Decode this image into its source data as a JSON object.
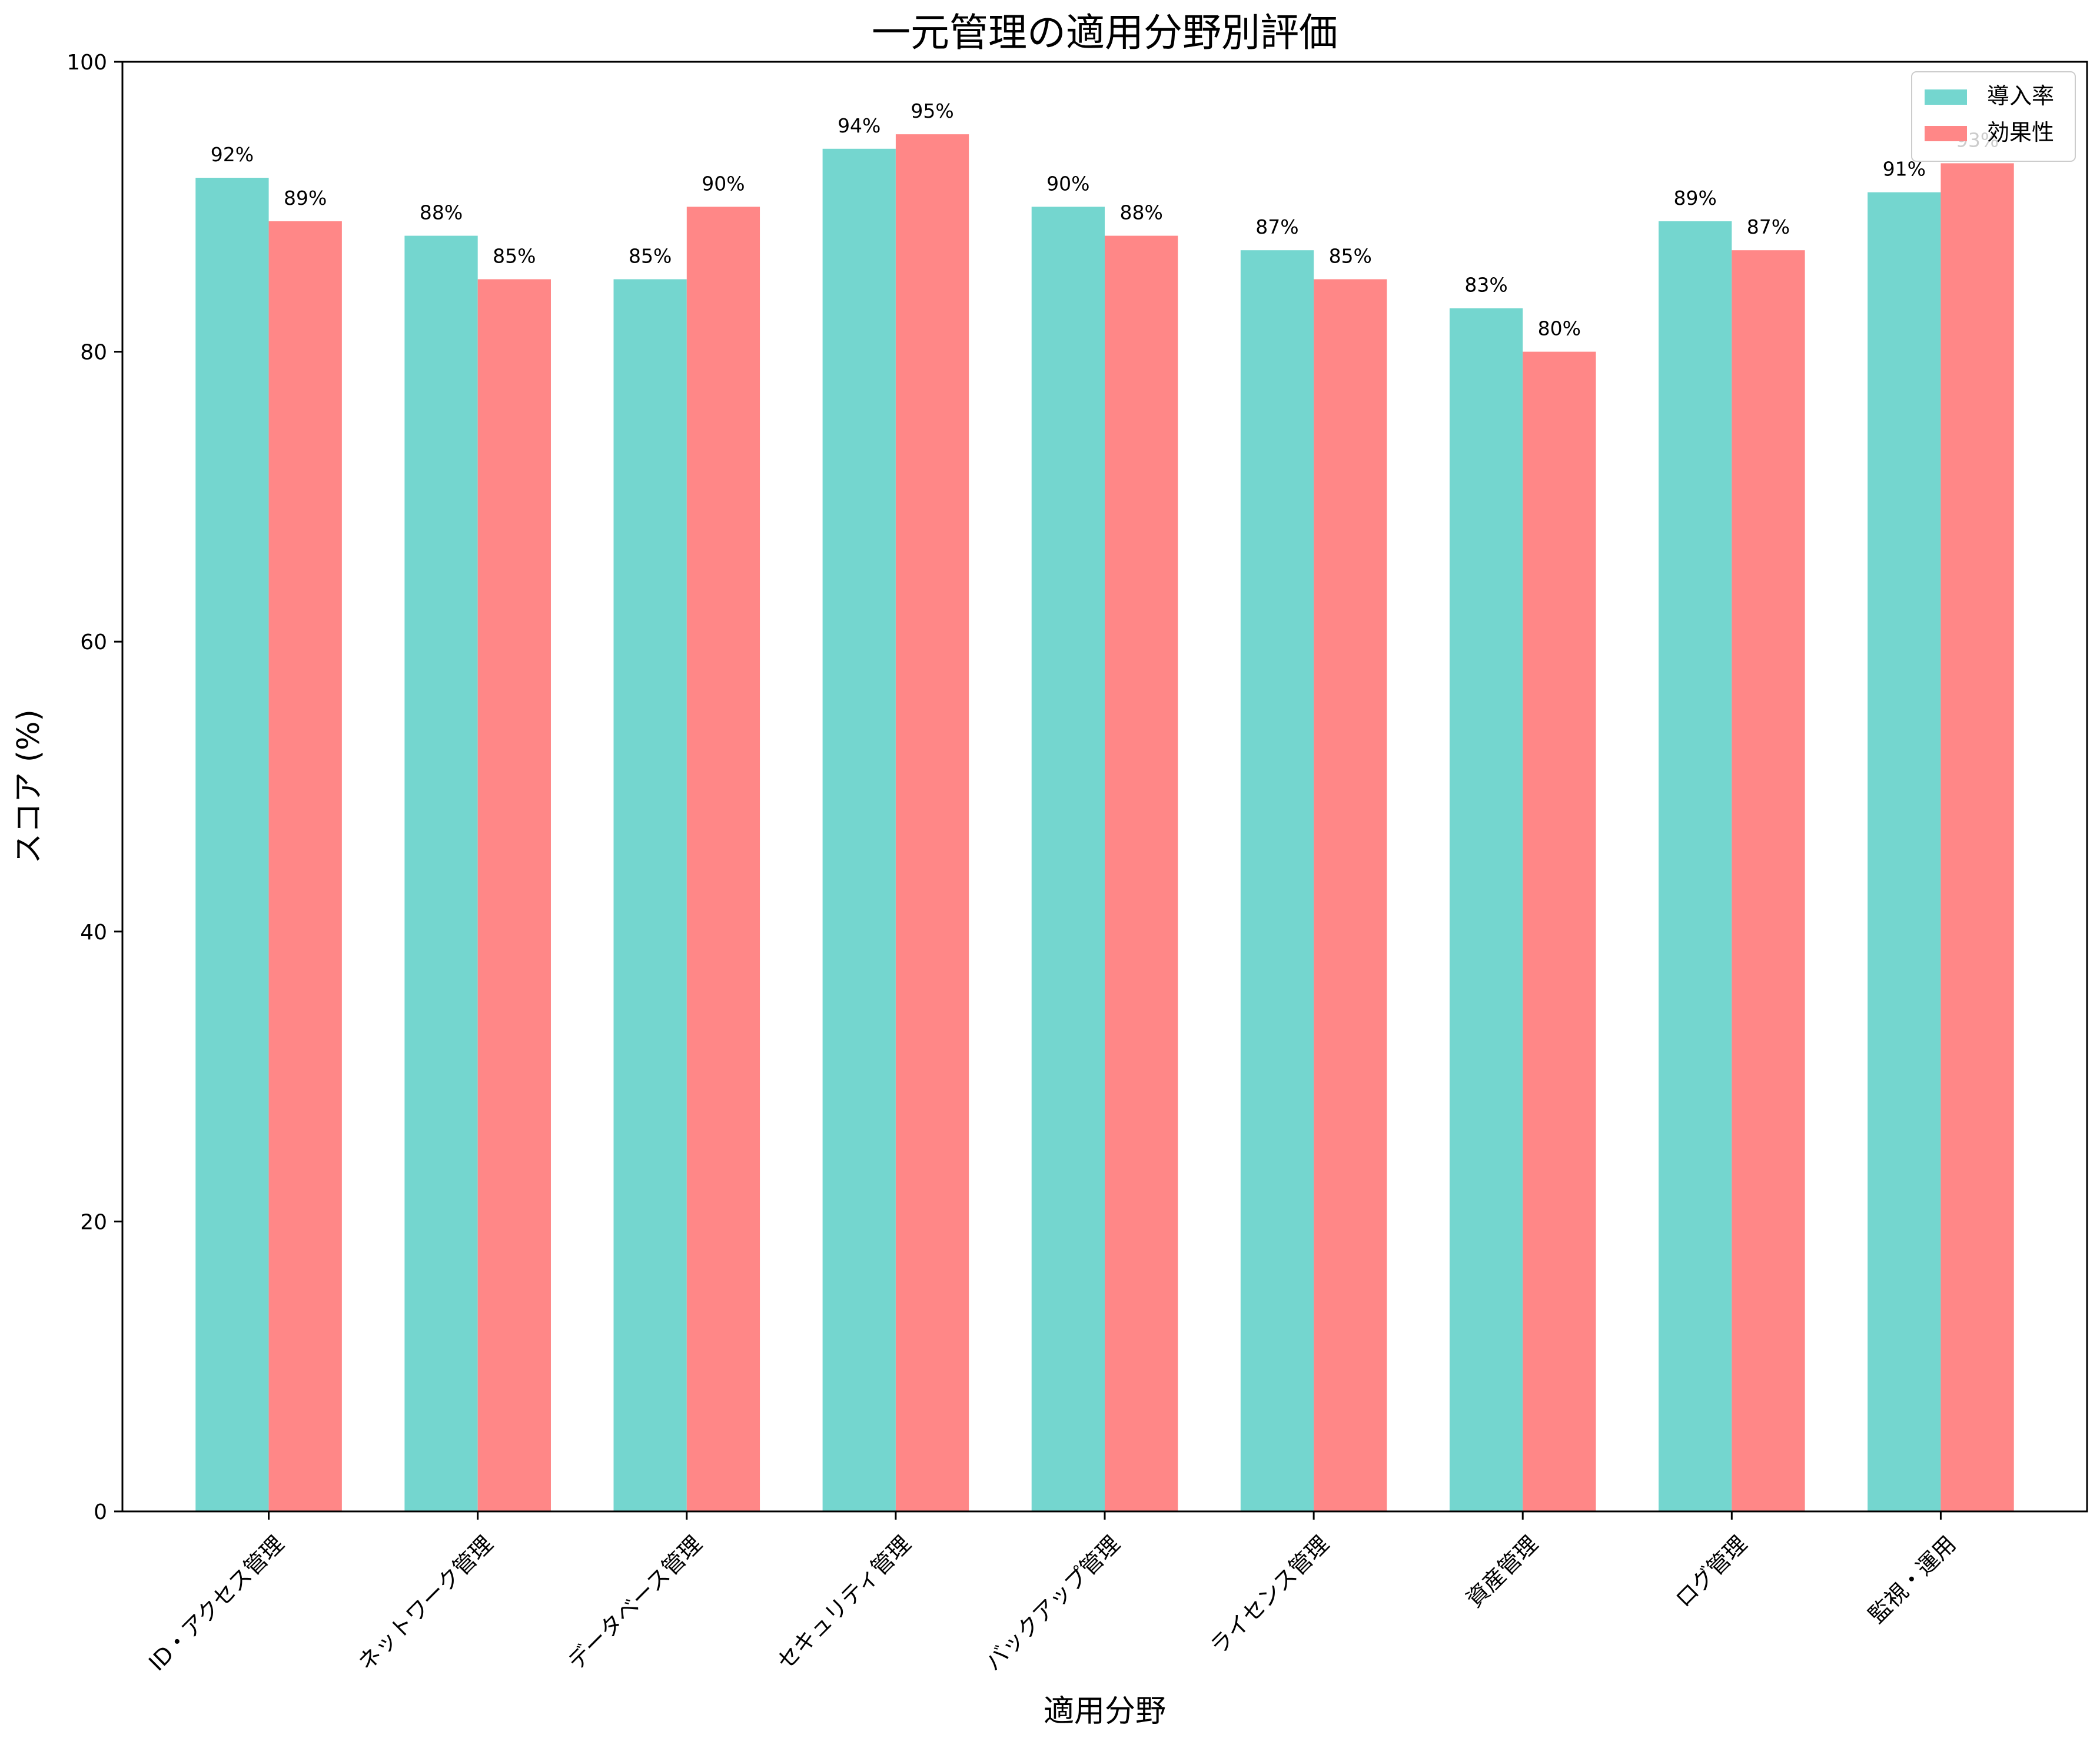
{
  "chart_data": {
    "type": "bar",
    "title": "一元管理の適用分野別評価",
    "xlabel": "適用分野",
    "ylabel": "スコア (%)",
    "ylim": [
      0,
      100
    ],
    "yticks": [
      0,
      20,
      40,
      60,
      80,
      100
    ],
    "categories": [
      "ID・アクセス管理",
      "ネットワーク管理",
      "データベース管理",
      "セキュリティ管理",
      "バックアップ管理",
      "ライセンス管理",
      "資産管理",
      "ログ管理",
      "監視・運用"
    ],
    "series": [
      {
        "name": "導入率",
        "color": "#74d6cf",
        "values": [
          92,
          88,
          85,
          94,
          90,
          87,
          83,
          89,
          91
        ]
      },
      {
        "name": "効果性",
        "color": "#ff8787",
        "values": [
          89,
          85,
          90,
          95,
          88,
          85,
          80,
          87,
          93
        ]
      }
    ],
    "value_suffix": "%",
    "legend_position": "top-right",
    "grid": false
  }
}
